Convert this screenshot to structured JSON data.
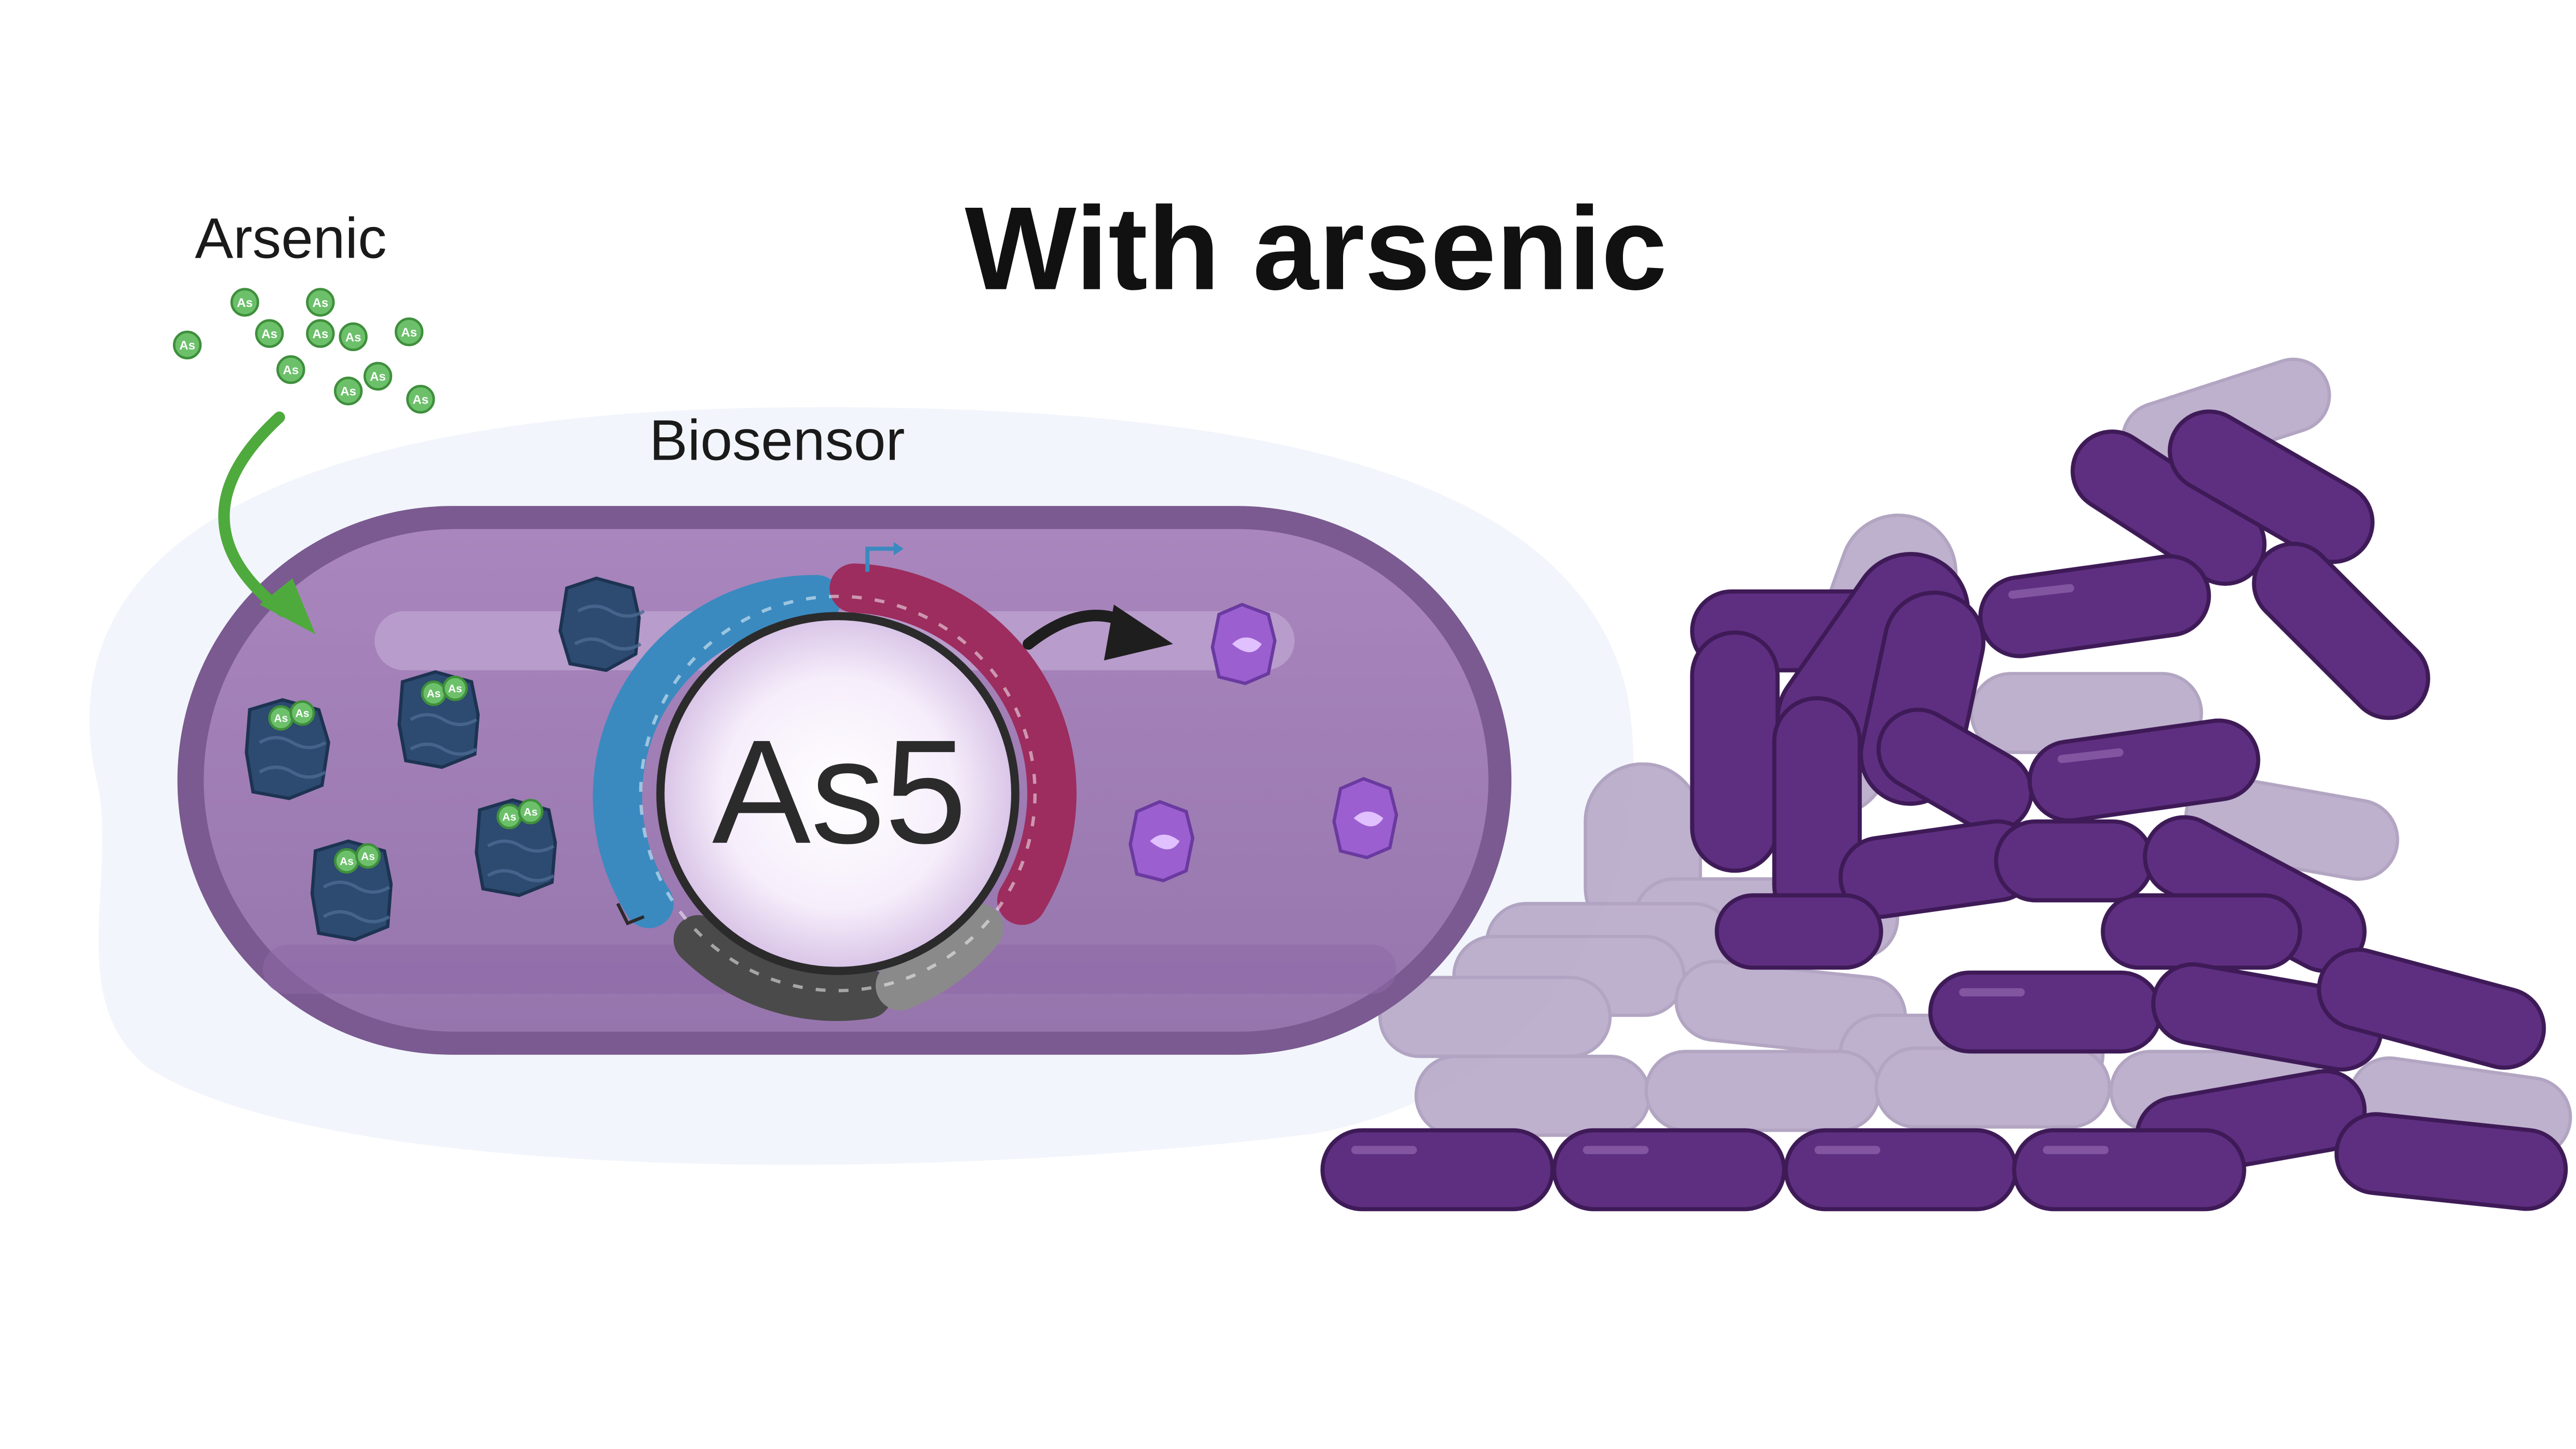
{
  "title": "With arsenic",
  "labels": {
    "arsenic": "Arsenic",
    "biosensor": "Biosensor",
    "plasmid": "As5"
  },
  "arsenic_symbol": "As",
  "icons": {
    "inflow_arrow": "curved-arrow-icon",
    "expression_arrow": "curved-arrow-icon",
    "promoter": "promoter-arrow-icon",
    "terminator": "terminator-icon"
  },
  "colors": {
    "cell_outer": "#7a5a90",
    "cell_inner": "#a27cb5",
    "arsenic_green": "#5cb85c",
    "repressor_blue": "#2a4a73",
    "gene_blue": "#3a8ac0",
    "gene_red": "#9c2d5e",
    "gene_gray": "#4a4a4a",
    "reporter_purple": "#9b5fd0",
    "colony_dark": "#5a2d7a",
    "colony_light": "#b3a3c4",
    "arrow_green": "#4eaa3c"
  }
}
